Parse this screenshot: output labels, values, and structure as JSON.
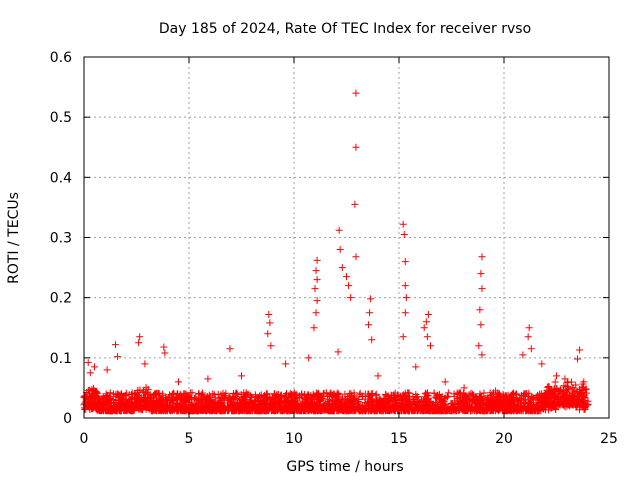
{
  "chart_data": {
    "type": "scatter",
    "title": "Day 185 of 2024, Rate Of TEC Index for receiver rvso",
    "xlabel": "GPS time / hours",
    "ylabel": "ROTI / TECUs",
    "xlim": [
      0,
      25
    ],
    "ylim": [
      0,
      0.6
    ],
    "x_ticks": [
      0,
      5,
      10,
      15,
      20,
      25
    ],
    "y_ticks": [
      0,
      0.1,
      0.2,
      0.3,
      0.4,
      0.5,
      0.6
    ],
    "x_tick_labels": [
      "0",
      "5",
      "10",
      "15",
      "20",
      "25"
    ],
    "y_tick_labels": [
      "0",
      "0.1",
      "0.2",
      "0.3",
      "0.4",
      "0.5",
      "0.6"
    ],
    "grid": true,
    "marker": "+",
    "color": "#ff0000",
    "x_data_range": [
      0,
      24
    ],
    "notes": "",
    "series": [
      {
        "points": [
          [
            12.95,
            0.54
          ],
          [
            12.95,
            0.45
          ],
          [
            12.9,
            0.355
          ],
          [
            12.95,
            0.268
          ],
          [
            12.15,
            0.312
          ],
          [
            12.2,
            0.28
          ],
          [
            12.3,
            0.25
          ],
          [
            12.5,
            0.235
          ],
          [
            12.6,
            0.22
          ],
          [
            12.7,
            0.2
          ],
          [
            15.2,
            0.322
          ],
          [
            15.25,
            0.305
          ],
          [
            15.3,
            0.26
          ],
          [
            15.3,
            0.22
          ],
          [
            15.35,
            0.2
          ],
          [
            15.3,
            0.175
          ],
          [
            15.2,
            0.135
          ],
          [
            11.1,
            0.262
          ],
          [
            11.05,
            0.245
          ],
          [
            11.1,
            0.23
          ],
          [
            11.0,
            0.215
          ],
          [
            11.1,
            0.195
          ],
          [
            11.05,
            0.175
          ],
          [
            10.95,
            0.15
          ],
          [
            18.95,
            0.268
          ],
          [
            18.9,
            0.24
          ],
          [
            18.95,
            0.215
          ],
          [
            18.85,
            0.18
          ],
          [
            18.9,
            0.155
          ],
          [
            18.8,
            0.12
          ],
          [
            18.95,
            0.105
          ],
          [
            13.65,
            0.198
          ],
          [
            13.6,
            0.175
          ],
          [
            13.55,
            0.155
          ],
          [
            13.7,
            0.13
          ],
          [
            16.4,
            0.172
          ],
          [
            16.3,
            0.16
          ],
          [
            16.2,
            0.15
          ],
          [
            16.35,
            0.135
          ],
          [
            16.5,
            0.12
          ],
          [
            8.8,
            0.172
          ],
          [
            8.85,
            0.158
          ],
          [
            8.75,
            0.14
          ],
          [
            8.9,
            0.12
          ],
          [
            21.2,
            0.15
          ],
          [
            21.15,
            0.135
          ],
          [
            21.3,
            0.115
          ],
          [
            20.9,
            0.105
          ],
          [
            2.65,
            0.135
          ],
          [
            2.6,
            0.125
          ],
          [
            3.8,
            0.118
          ],
          [
            3.85,
            0.108
          ],
          [
            1.5,
            0.122
          ],
          [
            1.6,
            0.102
          ],
          [
            6.95,
            0.115
          ],
          [
            23.6,
            0.113
          ],
          [
            23.5,
            0.098
          ],
          [
            0.2,
            0.092
          ],
          [
            0.3,
            0.075
          ],
          [
            0.5,
            0.085
          ],
          [
            1.1,
            0.08
          ],
          [
            2.9,
            0.09
          ],
          [
            4.5,
            0.06
          ],
          [
            5.9,
            0.065
          ],
          [
            7.5,
            0.07
          ],
          [
            9.6,
            0.09
          ],
          [
            10.7,
            0.1
          ],
          [
            12.1,
            0.11
          ],
          [
            14.0,
            0.07
          ],
          [
            15.8,
            0.085
          ],
          [
            17.2,
            0.06
          ],
          [
            18.1,
            0.05
          ],
          [
            19.6,
            0.045
          ],
          [
            20.4,
            0.04
          ],
          [
            21.8,
            0.09
          ],
          [
            22.5,
            0.07
          ],
          [
            22.9,
            0.065
          ],
          [
            23.8,
            0.06
          ]
        ]
      }
    ]
  }
}
